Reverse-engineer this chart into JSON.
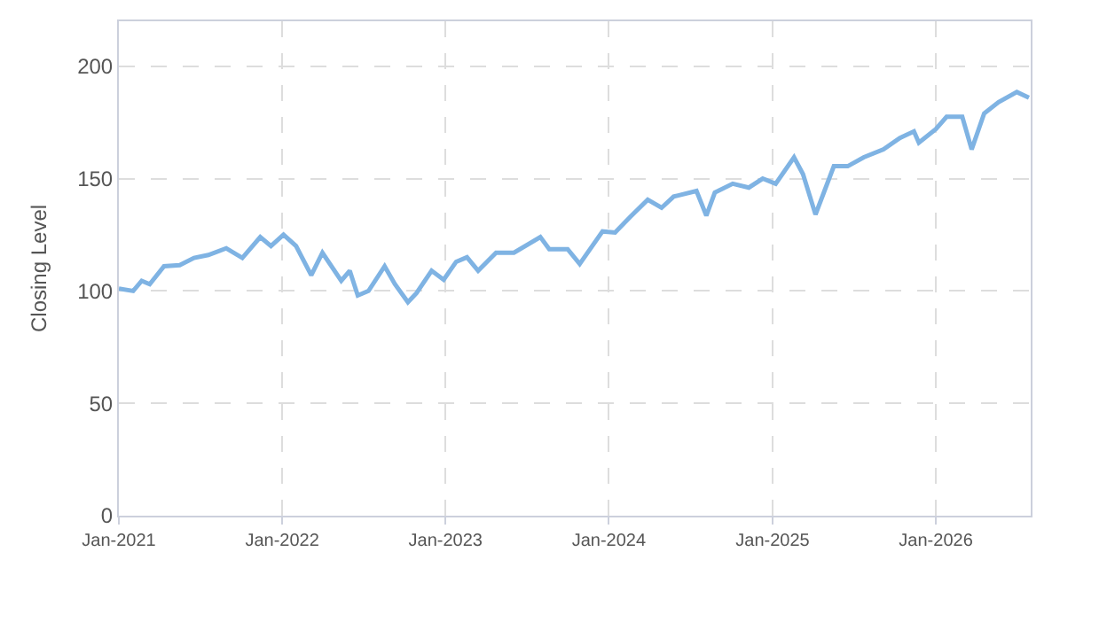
{
  "chart_data": {
    "type": "line",
    "ylabel": "Closing Level",
    "x": [
      "2021-01-01",
      "2021-02-02",
      "2021-02-21",
      "2021-03-11",
      "2021-04-12",
      "2021-05-17",
      "2021-06-18",
      "2021-07-20",
      "2021-08-29",
      "2021-10-04",
      "2021-11-13",
      "2021-12-07",
      "2022-01-04",
      "2022-02-01",
      "2022-03-07",
      "2022-04-01",
      "2022-05-13",
      "2022-06-01",
      "2022-06-19",
      "2022-07-13",
      "2022-08-18",
      "2022-09-10",
      "2022-10-09",
      "2022-10-28",
      "2022-12-01",
      "2022-12-28",
      "2023-01-25",
      "2023-02-18",
      "2023-03-15",
      "2023-04-24",
      "2023-06-03",
      "2023-08-01",
      "2023-08-21",
      "2023-10-01",
      "2023-10-28",
      "2023-12-18",
      "2024-01-15",
      "2024-02-18",
      "2024-03-28",
      "2024-04-28",
      "2024-05-25",
      "2024-07-15",
      "2024-08-06",
      "2024-08-25",
      "2024-10-04",
      "2024-11-09",
      "2024-12-10",
      "2025-01-08",
      "2025-02-18",
      "2025-03-10",
      "2025-04-07",
      "2025-04-27",
      "2025-05-18",
      "2025-06-18",
      "2025-07-24",
      "2025-09-06",
      "2025-10-12",
      "2025-11-13",
      "2025-11-24",
      "2026-01-01",
      "2026-01-25",
      "2026-03-01",
      "2026-03-22",
      "2026-04-19",
      "2026-05-21",
      "2026-07-01",
      "2026-07-28"
    ],
    "series": [
      {
        "color": "#7fb3e3",
        "values": [
          101,
          100,
          104.5,
          103,
          111,
          111.5,
          114.7,
          116,
          119,
          114.7,
          124,
          120,
          125,
          120,
          107,
          117,
          104.5,
          109,
          98,
          100,
          111,
          103,
          95,
          99,
          109,
          105,
          113,
          115,
          109,
          117,
          117,
          124,
          118.6,
          118.6,
          112,
          126.5,
          126,
          133,
          140.6,
          137,
          142,
          144.5,
          133.5,
          143.8,
          147.7,
          146,
          150,
          147.7,
          159.5,
          152,
          134,
          144.5,
          155.5,
          155.5,
          159.5,
          163,
          168,
          171,
          166,
          172,
          177.5,
          177.5,
          163,
          179,
          184,
          188.5,
          186
        ]
      }
    ],
    "xlim": [
      "2021-01-01",
      "2026-08-01"
    ],
    "xticks": [
      {
        "value": "2021-01-01",
        "label": "Jan-2021"
      },
      {
        "value": "2022-01-01",
        "label": "Jan-2022"
      },
      {
        "value": "2023-01-01",
        "label": "Jan-2023"
      },
      {
        "value": "2024-01-01",
        "label": "Jan-2024"
      },
      {
        "value": "2025-01-01",
        "label": "Jan-2025"
      },
      {
        "value": "2026-01-01",
        "label": "Jan-2026"
      }
    ],
    "ylim": [
      0,
      220
    ],
    "yticks": [
      0,
      50,
      100,
      150,
      200
    ],
    "grid": true,
    "legend": false,
    "marker": "none",
    "line_style": "solid"
  }
}
